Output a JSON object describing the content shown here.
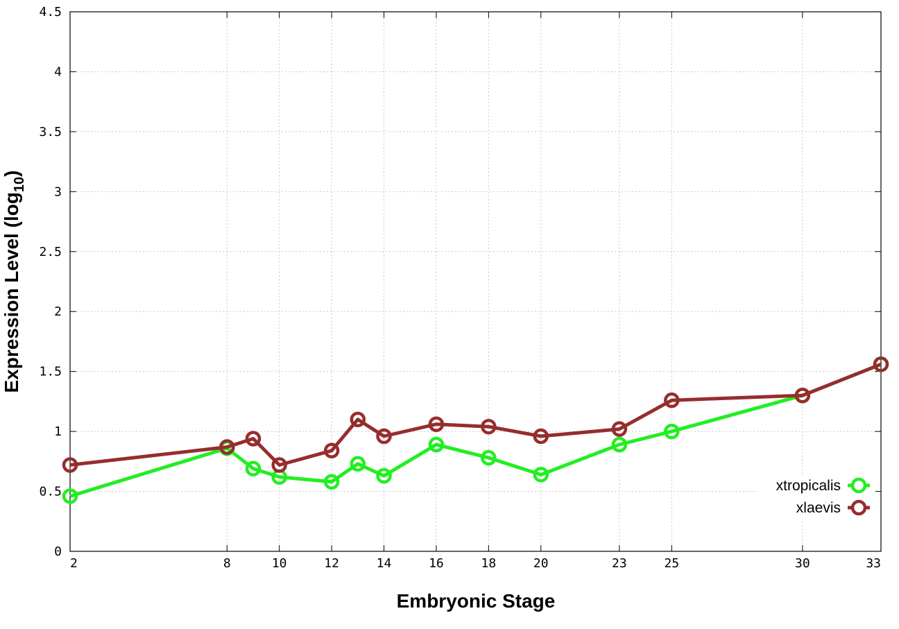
{
  "chart_data": {
    "type": "line",
    "title": "",
    "xlabel": "Embryonic Stage",
    "ylabel_main": "Expression Level (log",
    "ylabel_sub": "10",
    "ylabel_close": ")",
    "xlim": [
      2,
      33
    ],
    "ylim": [
      0,
      4.5
    ],
    "x_ticks": [
      2,
      8,
      10,
      12,
      14,
      16,
      18,
      20,
      23,
      25,
      30,
      33
    ],
    "y_ticks": [
      "0",
      "0.5",
      "1",
      "1.5",
      "2",
      "2.5",
      "3",
      "3.5",
      "4",
      "4.5"
    ],
    "grid": true,
    "legend_position": "bottom-right",
    "x": [
      2,
      8,
      9,
      10,
      12,
      13,
      14,
      16,
      18,
      20,
      23,
      25,
      30,
      33
    ],
    "series": [
      {
        "name": "xtropicalis",
        "color": "#22ee22",
        "values": [
          0.46,
          0.86,
          0.69,
          0.62,
          0.58,
          0.73,
          0.63,
          0.89,
          0.78,
          0.64,
          0.89,
          1.0,
          1.3,
          1.56
        ]
      },
      {
        "name": "xlaevis",
        "color": "#962d2d",
        "values": [
          0.72,
          0.87,
          0.94,
          0.72,
          0.84,
          1.1,
          0.96,
          1.06,
          1.04,
          0.96,
          1.02,
          1.26,
          1.3,
          1.56
        ]
      }
    ]
  }
}
